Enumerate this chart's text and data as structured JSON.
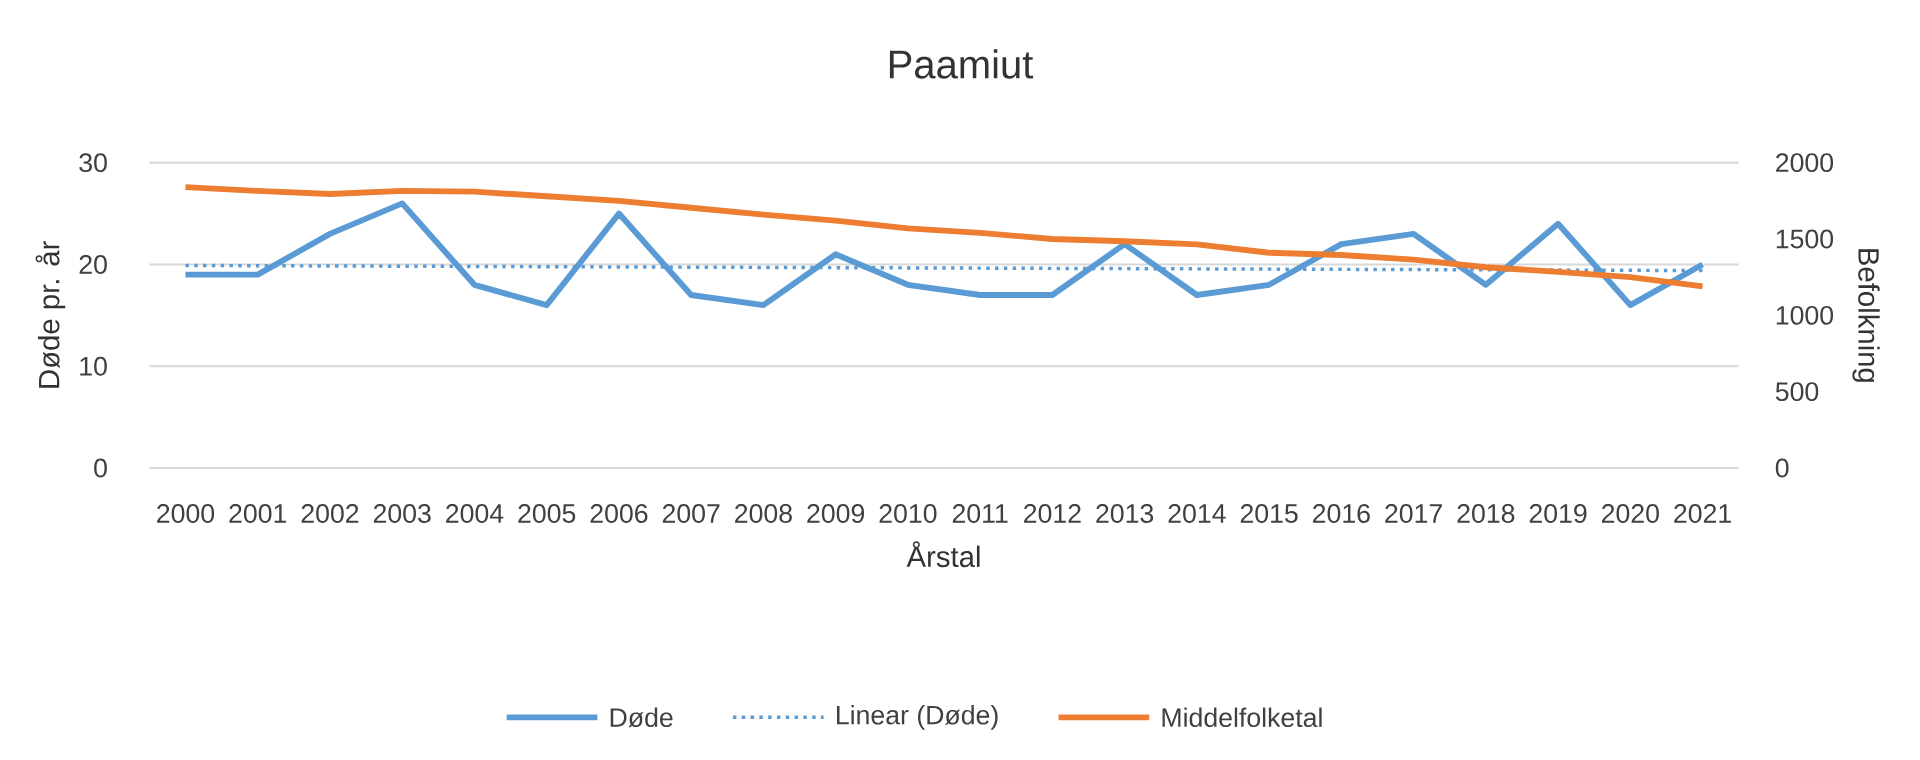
{
  "chart_data": {
    "type": "line",
    "title": "Paamiut",
    "xlabel": "Årstal",
    "ylabel": "Døde pr. år",
    "y2label": "Befolkning",
    "x": [
      2000,
      2001,
      2002,
      2003,
      2004,
      2005,
      2006,
      2007,
      2008,
      2009,
      2010,
      2011,
      2012,
      2013,
      2014,
      2015,
      2016,
      2017,
      2018,
      2019,
      2020,
      2021
    ],
    "xlim": [
      1999.5,
      2021.5
    ],
    "xticks": [
      2000,
      2001,
      2002,
      2003,
      2004,
      2005,
      2006,
      2007,
      2008,
      2009,
      2010,
      2011,
      2012,
      2013,
      2014,
      2015,
      2016,
      2017,
      2018,
      2019,
      2020,
      2021
    ],
    "ylim": [
      0,
      30
    ],
    "yticks": [
      0,
      10,
      20,
      30
    ],
    "y2lim": [
      0,
      2000
    ],
    "y2ticks": [
      0,
      500,
      1000,
      1500,
      2000
    ],
    "grid": "y",
    "legend": "bottom",
    "marker": "none",
    "series": [
      {
        "name": "Døde",
        "color": "#5b9bd5",
        "line_style": "solid",
        "values": [
          19,
          19,
          23,
          26,
          18,
          16,
          25,
          17,
          16,
          21,
          18,
          17,
          17,
          22,
          17,
          18,
          22,
          23,
          18,
          24,
          16,
          20
        ]
      },
      {
        "name": "Linear (Døde)",
        "color": "#5b9bd5",
        "line_style": "dotted",
        "x": [
          2000,
          2021
        ],
        "values": [
          19.9,
          19.4
        ]
      },
      {
        "name": "Middelfolketal",
        "color": "#ed7d31",
        "line_style": "solid",
        "axis": "y2",
        "values": [
          1840,
          1815,
          1795,
          1815,
          1810,
          1780,
          1750,
          1705,
          1660,
          1620,
          1570,
          1540,
          1500,
          1485,
          1465,
          1410,
          1395,
          1365,
          1315,
          1285,
          1250,
          1190
        ]
      }
    ]
  }
}
